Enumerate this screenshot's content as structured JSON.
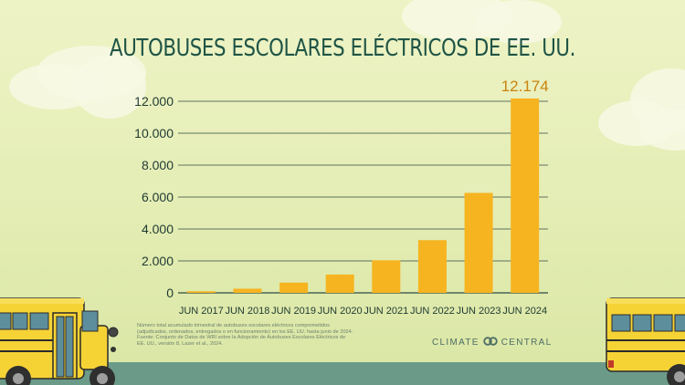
{
  "title": "AUTOBUSES ESCOLARES ELÉCTRICOS DE EE. UU.",
  "footnote": [
    "Número total acumulado trimestral de autobuses escolares eléctricos comprometidos",
    "(adjudicados, ordenados, entregados o en funcionamiento) en los EE. UU. hasta junio de 2024.",
    "Fuente: Conjunto de Datos de WRI sobre la Adopción de Autobuses Escolares Eléctricos de",
    "EE. UU., versión 8, Lazer et al., 2024."
  ],
  "brand": {
    "left": "CLIMATE",
    "right": "CENTRAL",
    "logo_icon": "linked-circles-icon",
    "color": "#4e6d64"
  },
  "colors": {
    "bar": "#f6b420",
    "title": "#1f5446",
    "grid": "#2f4a40",
    "label": "#c9830e",
    "ground": "#6b9a88"
  },
  "chart_data": {
    "type": "bar",
    "title": "AUTOBUSES ESCOLARES ELÉCTRICOS DE EE. UU.",
    "xlabel": "",
    "ylabel": "",
    "categories": [
      "JUN 2017",
      "JUN 2018",
      "JUN 2019",
      "JUN 2020",
      "JUN 2021",
      "JUN 2022",
      "JUN 2023",
      "JUN 2024"
    ],
    "values": [
      100,
      260,
      640,
      1150,
      2040,
      3300,
      6260,
      12174
    ],
    "ylim": [
      0,
      12000
    ],
    "yticks": [
      0,
      2000,
      4000,
      6000,
      8000,
      10000,
      12000
    ],
    "ytick_labels": [
      "0",
      "2.000",
      "4.000",
      "6.000",
      "8.000",
      "10.000",
      "12.000"
    ],
    "data_labels": [
      {
        "index": 7,
        "text": "12.174"
      }
    ],
    "grid": true,
    "legend": "none"
  }
}
